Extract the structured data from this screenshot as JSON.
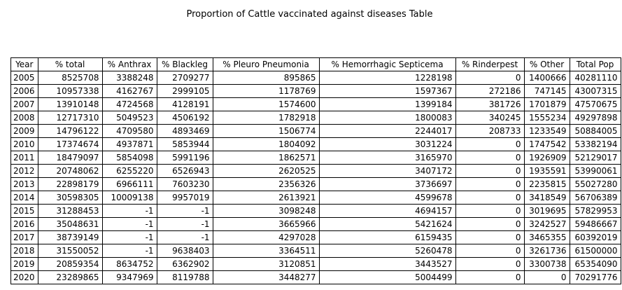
{
  "chart_data": {
    "type": "table",
    "title": "Proportion of Cattle vaccinated against diseases Table",
    "columns": [
      "Year",
      "% total",
      "% Anthrax",
      "% Blackleg",
      "% Pleuro Pneumonia",
      "% Hemorrhagic Septicema",
      "% Rinderpest",
      "% Other",
      "Total Pop"
    ],
    "rows": [
      [
        "2005",
        "8525708",
        "3388248",
        "2709277",
        "895865",
        "1228198",
        "0",
        "1400666",
        "40281110"
      ],
      [
        "2006",
        "10957338",
        "4162767",
        "2999105",
        "1178769",
        "1597367",
        "272186",
        "747145",
        "43007315"
      ],
      [
        "2007",
        "13910148",
        "4724568",
        "4128191",
        "1574600",
        "1399184",
        "381726",
        "1701879",
        "47570675"
      ],
      [
        "2008",
        "12717310",
        "5049523",
        "4506192",
        "1782918",
        "1800083",
        "340245",
        "1555234",
        "49297898"
      ],
      [
        "2009",
        "14796122",
        "4709580",
        "4893469",
        "1506774",
        "2244017",
        "208733",
        "1233549",
        "50884005"
      ],
      [
        "2010",
        "17374674",
        "4937871",
        "5853944",
        "1804092",
        "3031224",
        "0",
        "1747542",
        "53382194"
      ],
      [
        "2011",
        "18479097",
        "5854098",
        "5991196",
        "1862571",
        "3165970",
        "0",
        "1926909",
        "52129017"
      ],
      [
        "2012",
        "20748062",
        "6255220",
        "6526943",
        "2620525",
        "3407172",
        "0",
        "1935591",
        "53990061"
      ],
      [
        "2013",
        "22898179",
        "6966111",
        "7603230",
        "2356326",
        "3736697",
        "0",
        "2235815",
        "55027280"
      ],
      [
        "2014",
        "30598305",
        "10009138",
        "9957019",
        "2613921",
        "4599678",
        "0",
        "3418549",
        "56706389"
      ],
      [
        "2015",
        "31288453",
        "-1",
        "-1",
        "3098248",
        "4694157",
        "0",
        "3019695",
        "57829953"
      ],
      [
        "2016",
        "35048631",
        "-1",
        "-1",
        "3665966",
        "5421624",
        "0",
        "3242527",
        "59486667"
      ],
      [
        "2017",
        "38739149",
        "-1",
        "-1",
        "4297028",
        "6159435",
        "0",
        "3465355",
        "60392019"
      ],
      [
        "2018",
        "31550052",
        "-1",
        "9638403",
        "3364511",
        "5260478",
        "0",
        "3261736",
        "61500000"
      ],
      [
        "2019",
        "20859354",
        "8634752",
        "6362902",
        "3120851",
        "3443527",
        "0",
        "3300738",
        "65354090"
      ],
      [
        "2020",
        "23289865",
        "9347969",
        "8119788",
        "3448277",
        "5004499",
        "0",
        "0",
        "70291776"
      ]
    ]
  }
}
